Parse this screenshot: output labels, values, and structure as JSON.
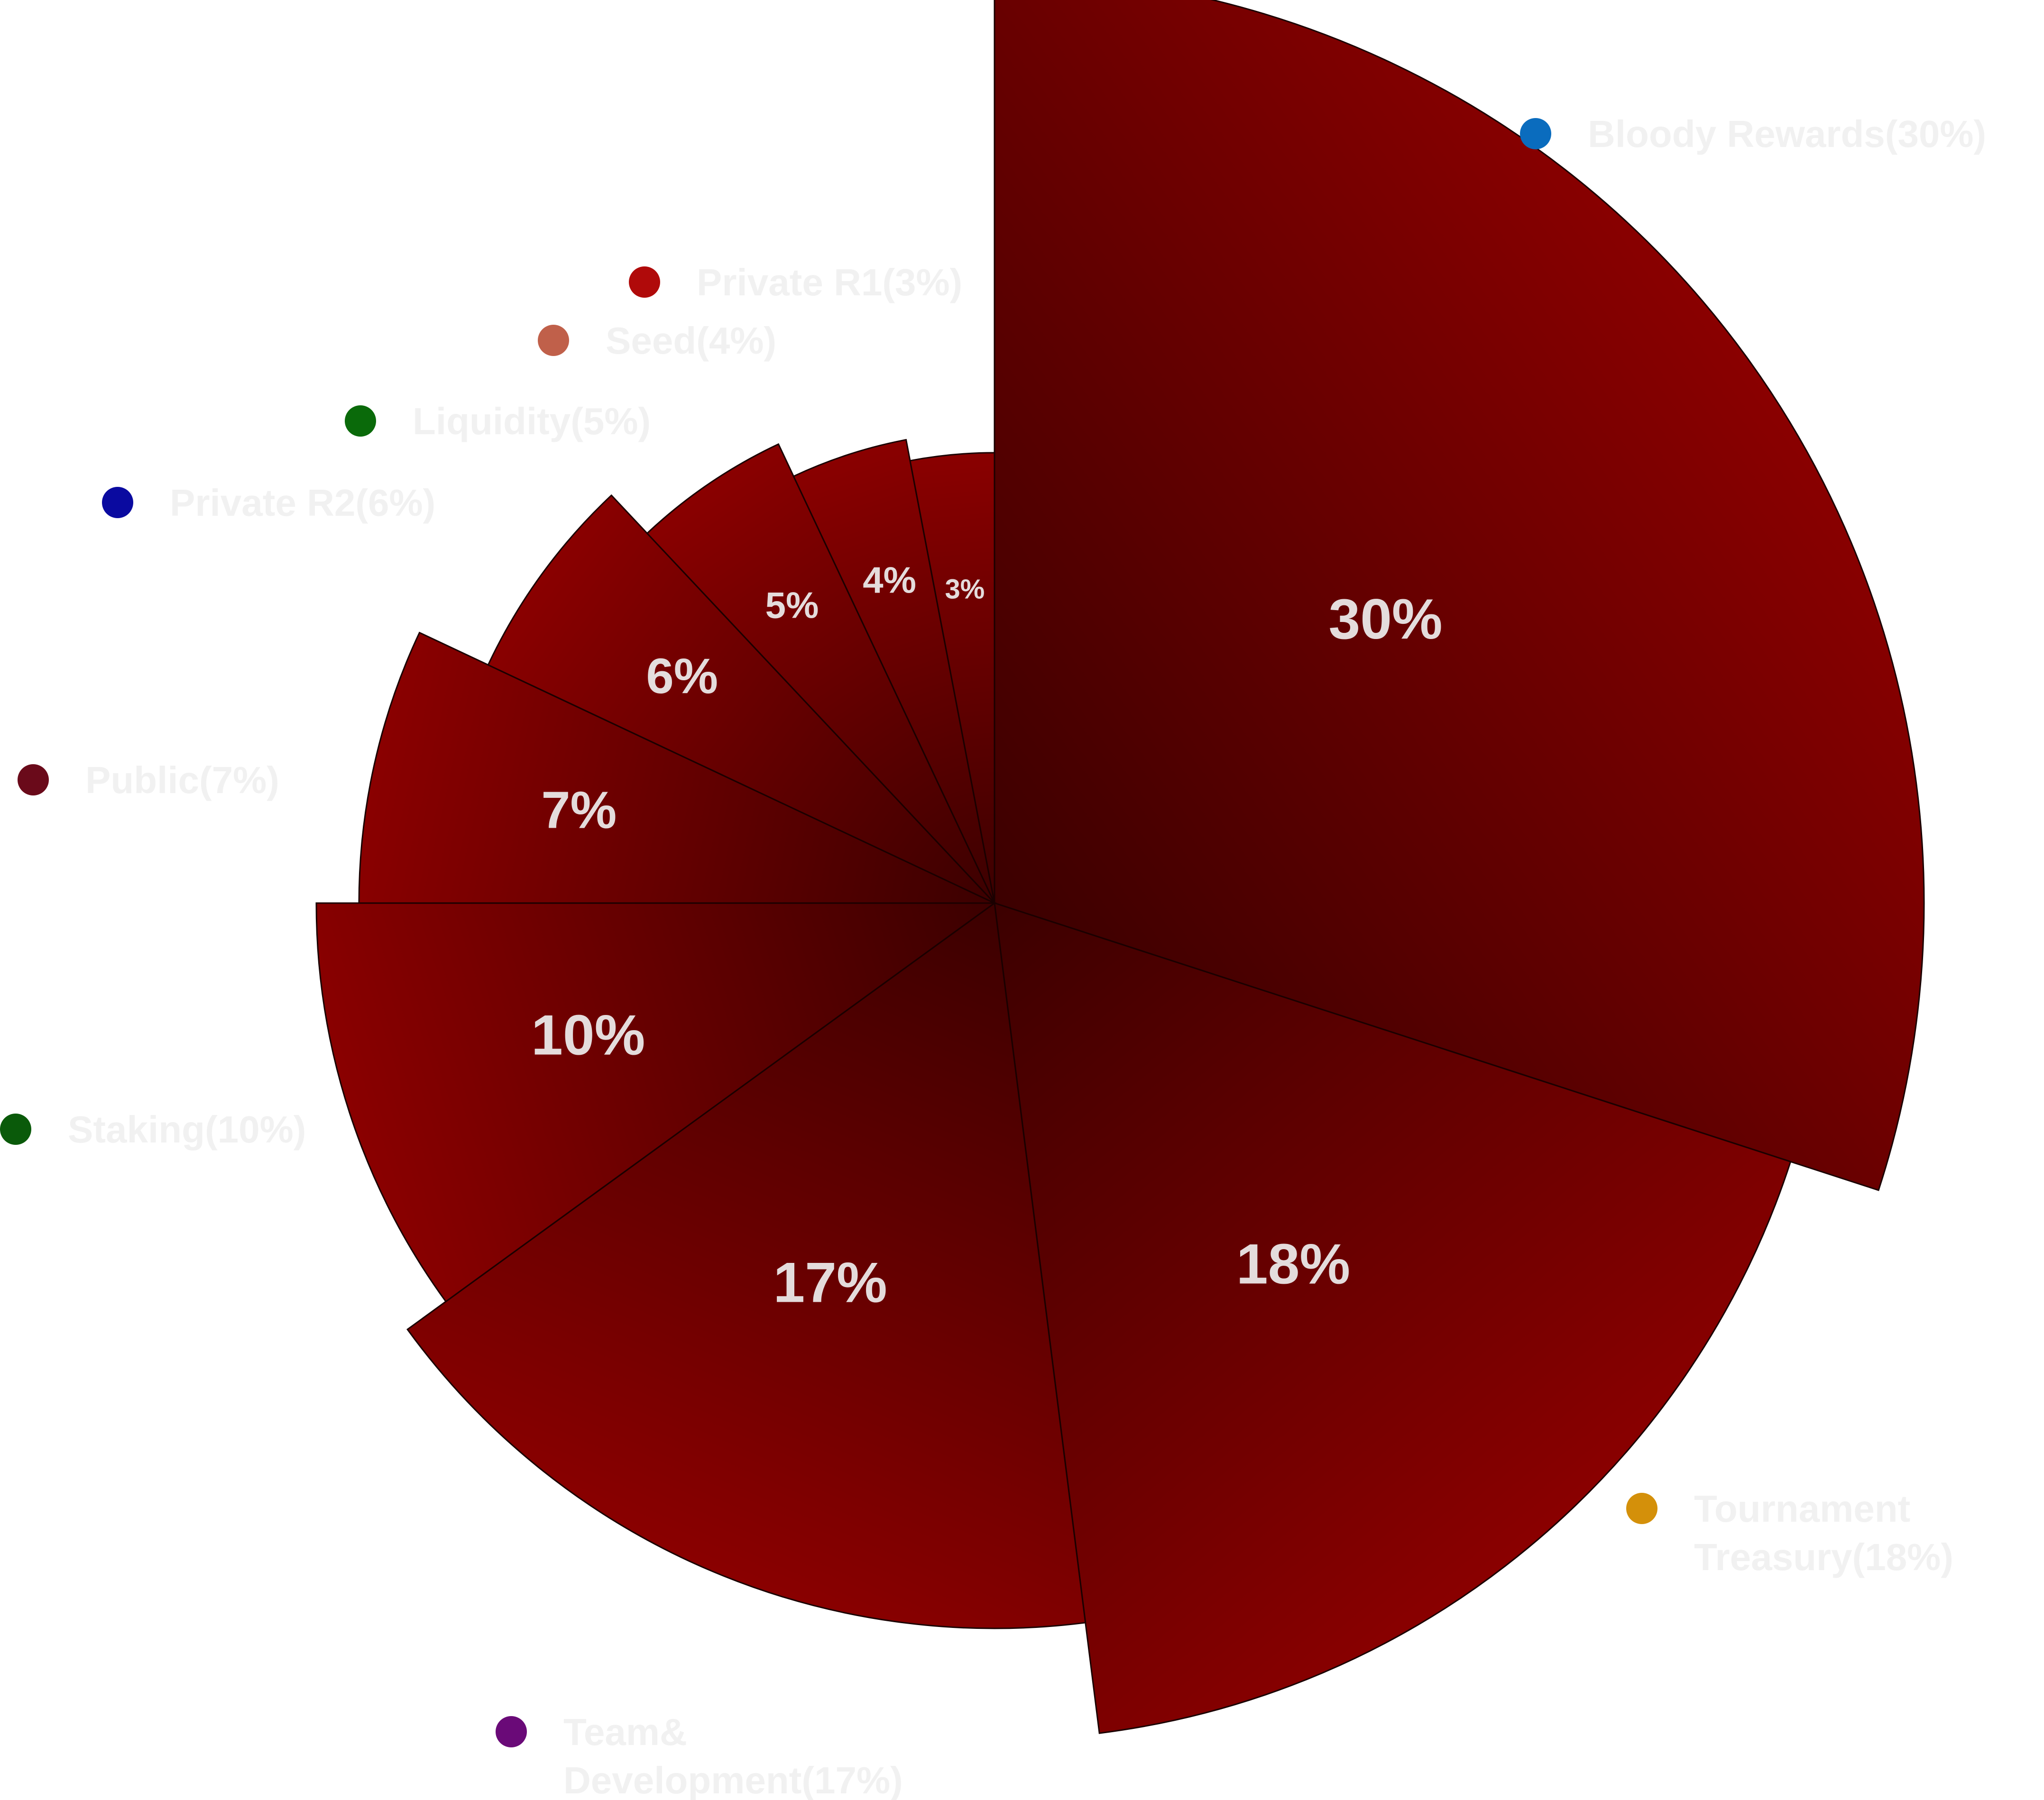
{
  "chart_data": {
    "type": "pie",
    "variant": "variable-radius",
    "slices": [
      {
        "name": "Bloody Rewards",
        "value": 30,
        "label": "30%",
        "legend": [
          "Bloody Rewards(30%)"
        ],
        "dot_color": "#0a6cbe"
      },
      {
        "name": "Tournament Treasury",
        "value": 18,
        "label": "18%",
        "legend": [
          "Tournament",
          "Treasury(18%)"
        ],
        "dot_color": "#d4900a"
      },
      {
        "name": "Team& Development",
        "value": 17,
        "label": "17%",
        "legend": [
          "Team&",
          "Development(17%)"
        ],
        "dot_color": "#6a0a78"
      },
      {
        "name": "Staking",
        "value": 10,
        "label": "10%",
        "legend": [
          "Staking(10%)"
        ],
        "dot_color": "#0a5a0a"
      },
      {
        "name": "Public",
        "value": 7,
        "label": "7%",
        "legend": [
          "Public(7%)"
        ],
        "dot_color": "#6a0a1a"
      },
      {
        "name": "Private R2",
        "value": 6,
        "label": "6%",
        "legend": [
          "Private R2(6%)"
        ],
        "dot_color": "#0a0aa0"
      },
      {
        "name": "Liquidity",
        "value": 5,
        "label": "5%",
        "legend": [
          "Liquidity(5%)"
        ],
        "dot_color": "#0a6a0a"
      },
      {
        "name": "Seed",
        "value": 4,
        "label": "4%",
        "legend": [
          "Seed(4%)"
        ],
        "dot_color": "#c0604a"
      },
      {
        "name": "Private R1",
        "value": 3,
        "label": "3%",
        "legend": [
          "Private R1(3%)"
        ],
        "dot_color": "#b00a0a"
      }
    ],
    "colors": {
      "dark": "#3c0000",
      "light": "#8a0000",
      "label": "#e4dcdc",
      "legend_text": "#f1f1f1"
    },
    "legend_placement": "around"
  }
}
